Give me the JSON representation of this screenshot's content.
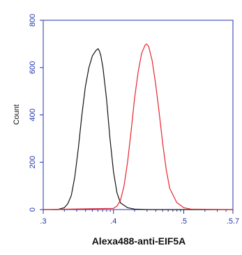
{
  "chart_data": {
    "type": "line",
    "title": "",
    "xlabel": "Alexa488-anti-EIF5A",
    "ylabel": "Count",
    "xlim": [
      3,
      5.7
    ],
    "ylim": [
      0,
      800
    ],
    "x_ticks": [
      3,
      4,
      5,
      5.7
    ],
    "x_tick_labels": [
      ".3",
      ".4",
      ".5",
      ".5.7"
    ],
    "y_ticks": [
      0,
      200,
      400,
      600,
      800
    ],
    "y_tick_labels": [
      "0",
      "200",
      "400",
      "600",
      "800"
    ],
    "grid": false,
    "legend": "none",
    "colors": {
      "axis": "#2233aa",
      "series_1": "#111111",
      "series_2": "#e8232c"
    },
    "series": [
      {
        "color": "#111111",
        "x": [
          3.0,
          3.2,
          3.3,
          3.35,
          3.4,
          3.45,
          3.5,
          3.55,
          3.6,
          3.65,
          3.7,
          3.75,
          3.78,
          3.8,
          3.82,
          3.85,
          3.9,
          3.95,
          4.0,
          4.05,
          4.1,
          4.2,
          4.3,
          4.5,
          5.7
        ],
        "y": [
          0,
          0,
          8,
          25,
          60,
          140,
          260,
          400,
          520,
          600,
          650,
          672,
          680,
          670,
          650,
          600,
          470,
          300,
          160,
          70,
          28,
          8,
          2,
          0,
          0
        ]
      },
      {
        "color": "#e8232c",
        "x": [
          3.0,
          4.0,
          4.05,
          4.1,
          4.15,
          4.2,
          4.25,
          4.3,
          4.35,
          4.4,
          4.45,
          4.47,
          4.5,
          4.55,
          4.6,
          4.65,
          4.7,
          4.75,
          4.8,
          4.9,
          5.0,
          5.1,
          5.7
        ],
        "y": [
          0,
          5,
          15,
          40,
          100,
          200,
          330,
          470,
          580,
          660,
          695,
          700,
          690,
          630,
          530,
          410,
          280,
          170,
          90,
          30,
          8,
          2,
          0
        ]
      }
    ]
  }
}
